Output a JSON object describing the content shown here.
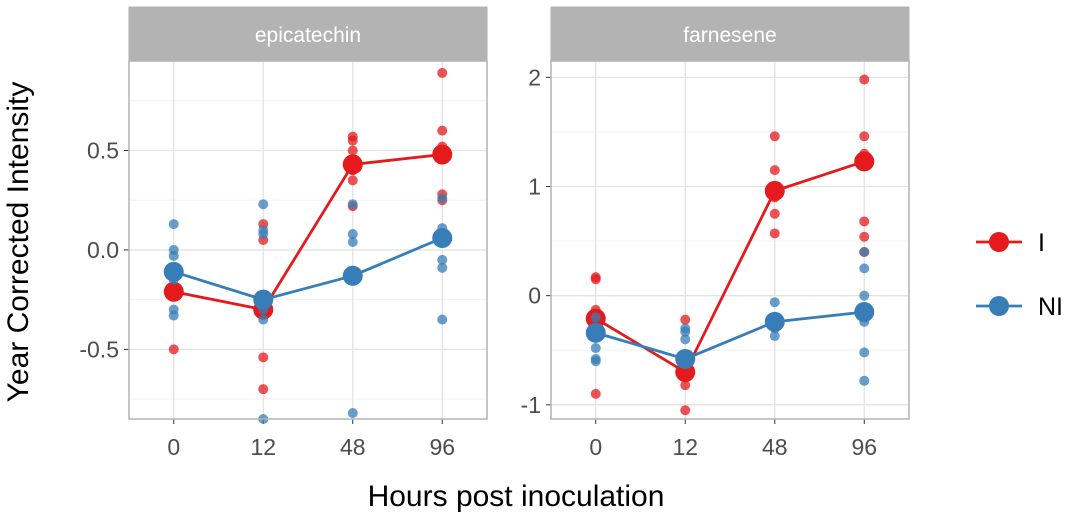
{
  "chart_data": {
    "type": "scatter",
    "xlabel": "Hours post inoculation",
    "ylabel": "Year Corrected Intensity",
    "categories": [
      "0",
      "12",
      "48",
      "96"
    ],
    "legend": {
      "position": "right",
      "entries": [
        {
          "key": "I",
          "label": "I",
          "color": "#E41A1C"
        },
        {
          "key": "NI",
          "label": "NI",
          "color": "#377EB8"
        }
      ]
    },
    "panels": [
      {
        "title": "epicatechin",
        "ylim": [
          -0.85,
          0.95
        ],
        "yticks": [
          -0.5,
          0.0,
          0.5
        ],
        "ytick_labels": [
          "-0.5",
          "0.0",
          "0.5"
        ],
        "series": [
          {
            "name": "I",
            "means": [
              -0.21,
              -0.3,
              0.43,
              0.48
            ],
            "points": [
              [
                -0.2,
                -0.22,
                -0.5
              ],
              [
                0.13,
                0.05,
                -0.3,
                -0.54,
                -0.7
              ],
              [
                0.57,
                0.55,
                0.5,
                0.4,
                0.35,
                0.22
              ],
              [
                0.89,
                0.6,
                0.52,
                0.47,
                0.28,
                0.25
              ]
            ]
          },
          {
            "name": "NI",
            "means": [
              -0.11,
              -0.25,
              -0.13,
              0.06
            ],
            "points": [
              [
                0.13,
                0.0,
                -0.03,
                -0.12,
                -0.15,
                -0.3,
                -0.33
              ],
              [
                0.23,
                0.1,
                0.08,
                -0.3,
                -0.35,
                -0.85
              ],
              [
                0.23,
                0.08,
                0.04,
                -0.15,
                -0.82
              ],
              [
                0.26,
                0.11,
                0.06,
                -0.05,
                -0.09,
                -0.35
              ]
            ]
          }
        ]
      },
      {
        "title": "farnesene",
        "ylim": [
          -1.13,
          2.15
        ],
        "yticks": [
          -1,
          0,
          1,
          2
        ],
        "ytick_labels": [
          "-1",
          "0",
          "1",
          "2"
        ],
        "series": [
          {
            "name": "I",
            "means": [
              -0.21,
              -0.7,
              0.96,
              1.23
            ],
            "points": [
              [
                0.17,
                0.15,
                -0.13,
                -0.3,
                -0.9
              ],
              [
                -0.22,
                -0.6,
                -0.75,
                -0.82,
                -1.05
              ],
              [
                1.46,
                1.15,
                0.9,
                0.75,
                0.57
              ],
              [
                1.98,
                1.46,
                1.3,
                0.68,
                0.54,
                0.4
              ]
            ]
          },
          {
            "name": "NI",
            "means": [
              -0.34,
              -0.58,
              -0.24,
              -0.15
            ],
            "points": [
              [
                -0.2,
                -0.38,
                -0.48,
                -0.58,
                -0.6
              ],
              [
                -0.3,
                -0.33,
                -0.4,
                -0.55,
                -0.6
              ],
              [
                -0.06,
                -0.2,
                -0.3,
                -0.37
              ],
              [
                0.4,
                0.25,
                0.0,
                -0.2,
                -0.24,
                -0.52,
                -0.78
              ]
            ]
          }
        ]
      }
    ]
  }
}
